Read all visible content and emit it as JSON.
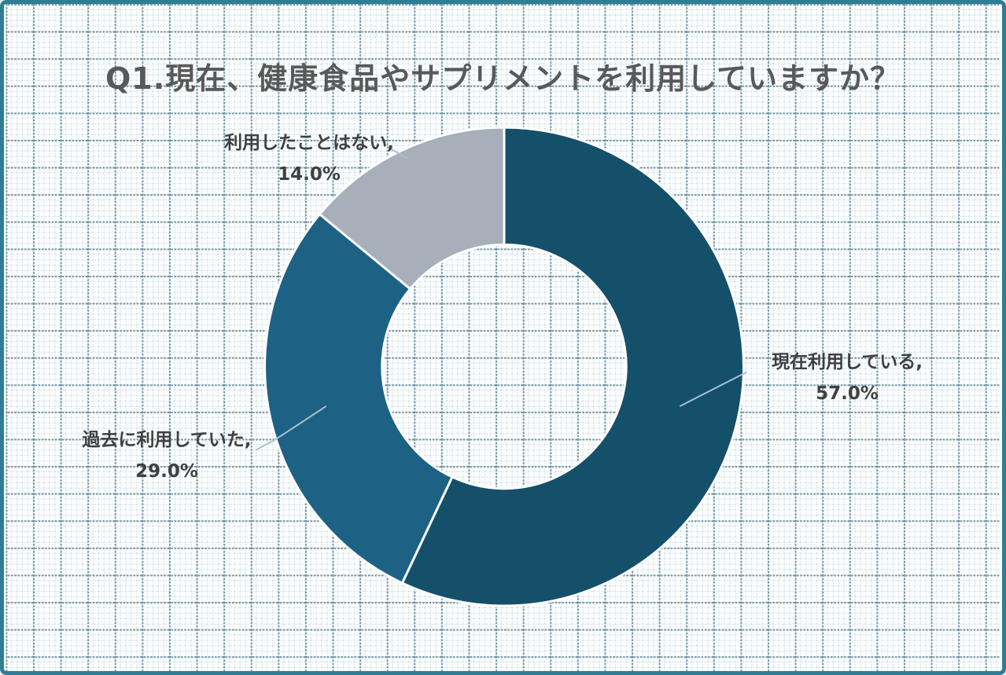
{
  "frame": {
    "border_color": "#2e7d97",
    "background_color": "#fcfeff",
    "grid_minor_color": "#c5d6dc",
    "grid_major_color": "#6e929f"
  },
  "chart_data": {
    "type": "pie",
    "subtype": "donut",
    "title": "Q1.現在、健康食品やサプリメントを利用していますか？",
    "categories": [
      "現在利用している",
      "過去に利用していた",
      "利用したことはない"
    ],
    "values": [
      57.0,
      29.0,
      14.0
    ],
    "unit": "%",
    "slice_colors": [
      "#15506b",
      "#1d6285",
      "#a6afba"
    ],
    "separator_color": "#ffffff",
    "leader_line_color": "#a8c1ce",
    "title_color": "#595959",
    "label_color": "#404040",
    "start_angle": "top",
    "direction": "clockwise",
    "hole_ratio": 0.51,
    "legend": false,
    "data_label_position": "outside-callout",
    "callouts": [
      {
        "label": "現在利用している,",
        "value": "57.0%"
      },
      {
        "label": "過去に利用していた,",
        "value": "29.0%"
      },
      {
        "label": "利用したことはない,",
        "value": "14.0%"
      }
    ]
  }
}
